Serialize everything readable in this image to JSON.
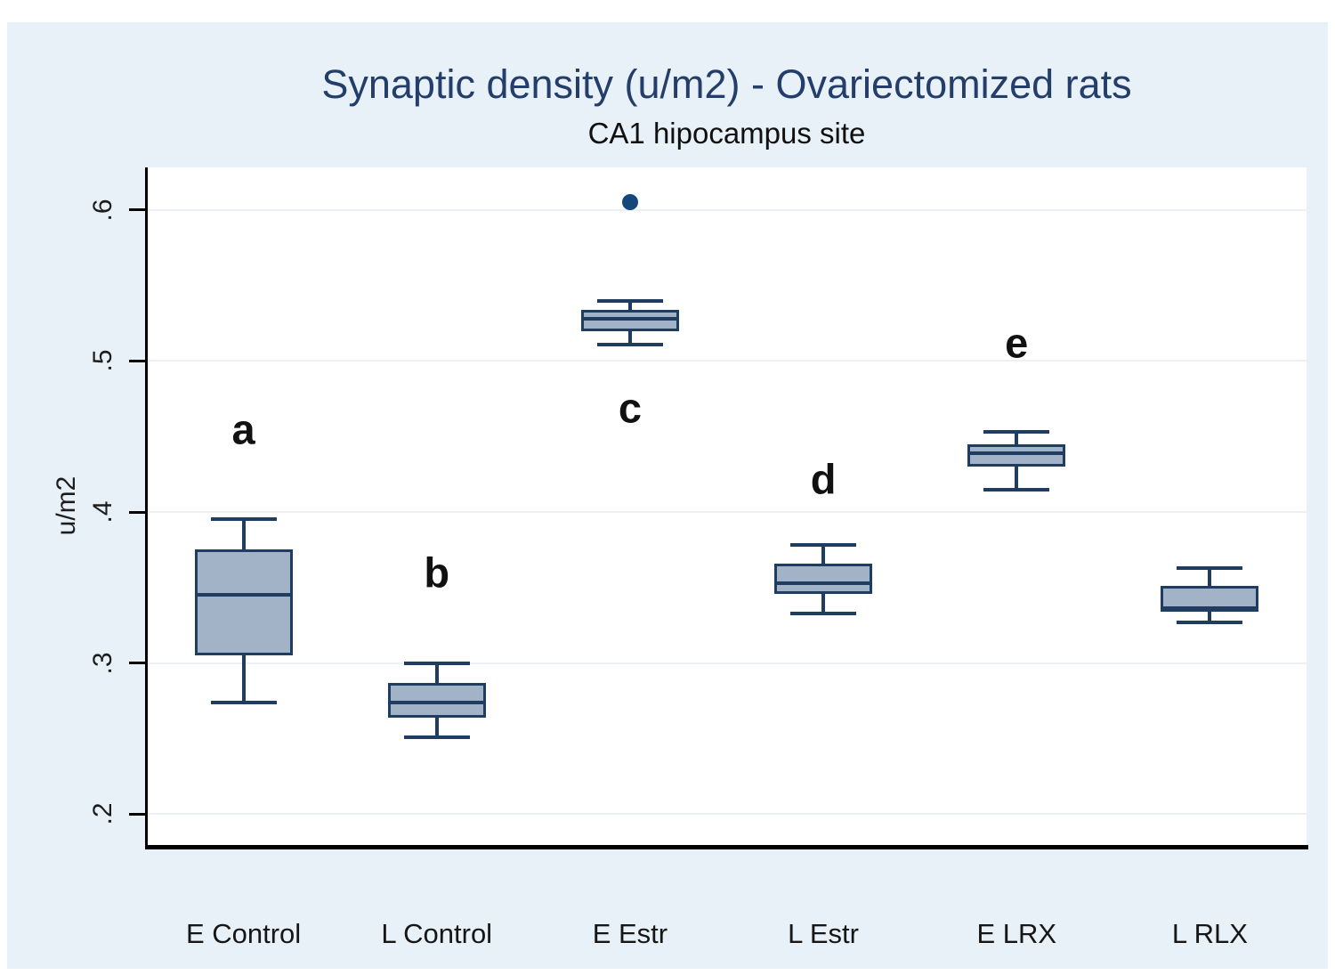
{
  "chart_data": {
    "type": "box",
    "title": "Synaptic density (u/m2) - Ovariectomized rats",
    "subtitle": "CA1 hipocampus site",
    "ylabel": "u/m2",
    "xlabel": "",
    "ylim": [
      0.1776,
      0.6283
    ],
    "grid": true,
    "legend": "none",
    "yticks": [
      {
        "label": ".2",
        "value": 0.2
      },
      {
        "label": ".3",
        "value": 0.3
      },
      {
        "label": ".4",
        "value": 0.4
      },
      {
        "label": ".5",
        "value": 0.5
      },
      {
        "label": ".6",
        "value": 0.6
      }
    ],
    "categories": [
      "E Control",
      "L Control",
      "E Estr",
      "L Estr",
      "E LRX",
      "L RLX"
    ],
    "series": [
      {
        "category": "E Control",
        "low": 0.274,
        "q1": 0.305,
        "median": 0.345,
        "q3": 0.375,
        "high": 0.395,
        "outliers": [],
        "letter": "a",
        "letter_value": 0.455
      },
      {
        "category": "L Control",
        "low": 0.251,
        "q1": 0.264,
        "median": 0.274,
        "q3": 0.287,
        "high": 0.3,
        "outliers": [],
        "letter": "b",
        "letter_value": 0.36
      },
      {
        "category": "E Estr",
        "low": 0.511,
        "q1": 0.52,
        "median": 0.528,
        "q3": 0.534,
        "high": 0.54,
        "outliers": [
          0.605
        ],
        "letter": "c",
        "letter_value": 0.469
      },
      {
        "category": "L Estr",
        "low": 0.333,
        "q1": 0.346,
        "median": 0.353,
        "q3": 0.366,
        "high": 0.378,
        "outliers": [],
        "letter": "d",
        "letter_value": 0.422
      },
      {
        "category": "E LRX",
        "low": 0.415,
        "q1": 0.43,
        "median": 0.439,
        "q3": 0.445,
        "high": 0.453,
        "outliers": [],
        "letter": "e",
        "letter_value": 0.512
      },
      {
        "category": "L RLX",
        "low": 0.327,
        "q1": 0.334,
        "median": 0.336,
        "q3": 0.351,
        "high": 0.363,
        "outliers": [],
        "letter": "",
        "letter_value": null
      }
    ],
    "colors": {
      "box_fill": "#a2b3c7",
      "box_border": "#1f3d61",
      "whisker": "#1f3d61",
      "outlier": "#15477d",
      "gridline": "#edf0f7",
      "axis": "#000000",
      "title": "#243e6b",
      "text": "#161616",
      "panel_background": "#e8f1f8",
      "plot_background": "#ffffff"
    }
  }
}
